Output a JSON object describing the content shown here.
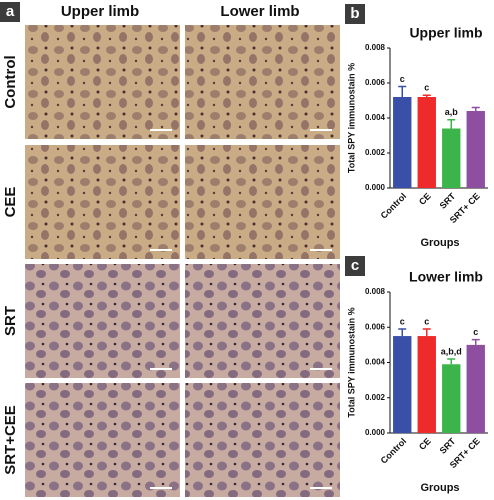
{
  "panel_a": {
    "label": "a",
    "columns": [
      "Upper limb",
      "Lower limb"
    ],
    "rows": [
      "Control",
      "CEE",
      "SRT",
      "SRT+CEE"
    ]
  },
  "chart_data": [
    {
      "type": "bar",
      "panel_label": "b",
      "title": "Upper limb",
      "y_label": "Total SPY immunostain %",
      "x_label": "Groups",
      "categories": [
        "Control",
        "CE",
        "SRT",
        "SRT+ CE"
      ],
      "values": [
        0.0052,
        0.0052,
        0.0034,
        0.0044
      ],
      "errors": [
        0.0006,
        0.0001,
        0.0005,
        0.0002
      ],
      "annotations": [
        "c",
        "c",
        "a,b",
        null
      ],
      "colors": [
        "#3a4fa8",
        "#ee2a2a",
        "#3bb54a",
        "#8e4fa0"
      ],
      "ylim": [
        0,
        0.008
      ],
      "yticks": [
        {
          "value": 0,
          "label": "0.000"
        },
        0.002,
        0.004,
        0.006,
        0.008
      ]
    },
    {
      "type": "bar",
      "panel_label": "c",
      "title": "Lower limb",
      "y_label": "Total SPY immunostain %",
      "x_label": "Groups",
      "categories": [
        "Control",
        "CE",
        "SRT",
        "SRT+ CE"
      ],
      "values": [
        0.0055,
        0.0055,
        0.0039,
        0.005
      ],
      "errors": [
        0.0004,
        0.0004,
        0.0003,
        0.0003
      ],
      "annotations": [
        "c",
        "c",
        "a,b,d",
        "c"
      ],
      "colors": [
        "#3a4fa8",
        "#ee2a2a",
        "#3bb54a",
        "#8e4fa0"
      ],
      "ylim": [
        0,
        0.008
      ],
      "yticks": [
        {
          "value": 0,
          "label": "0.000"
        },
        0.002,
        0.004,
        0.006,
        0.008
      ]
    }
  ]
}
